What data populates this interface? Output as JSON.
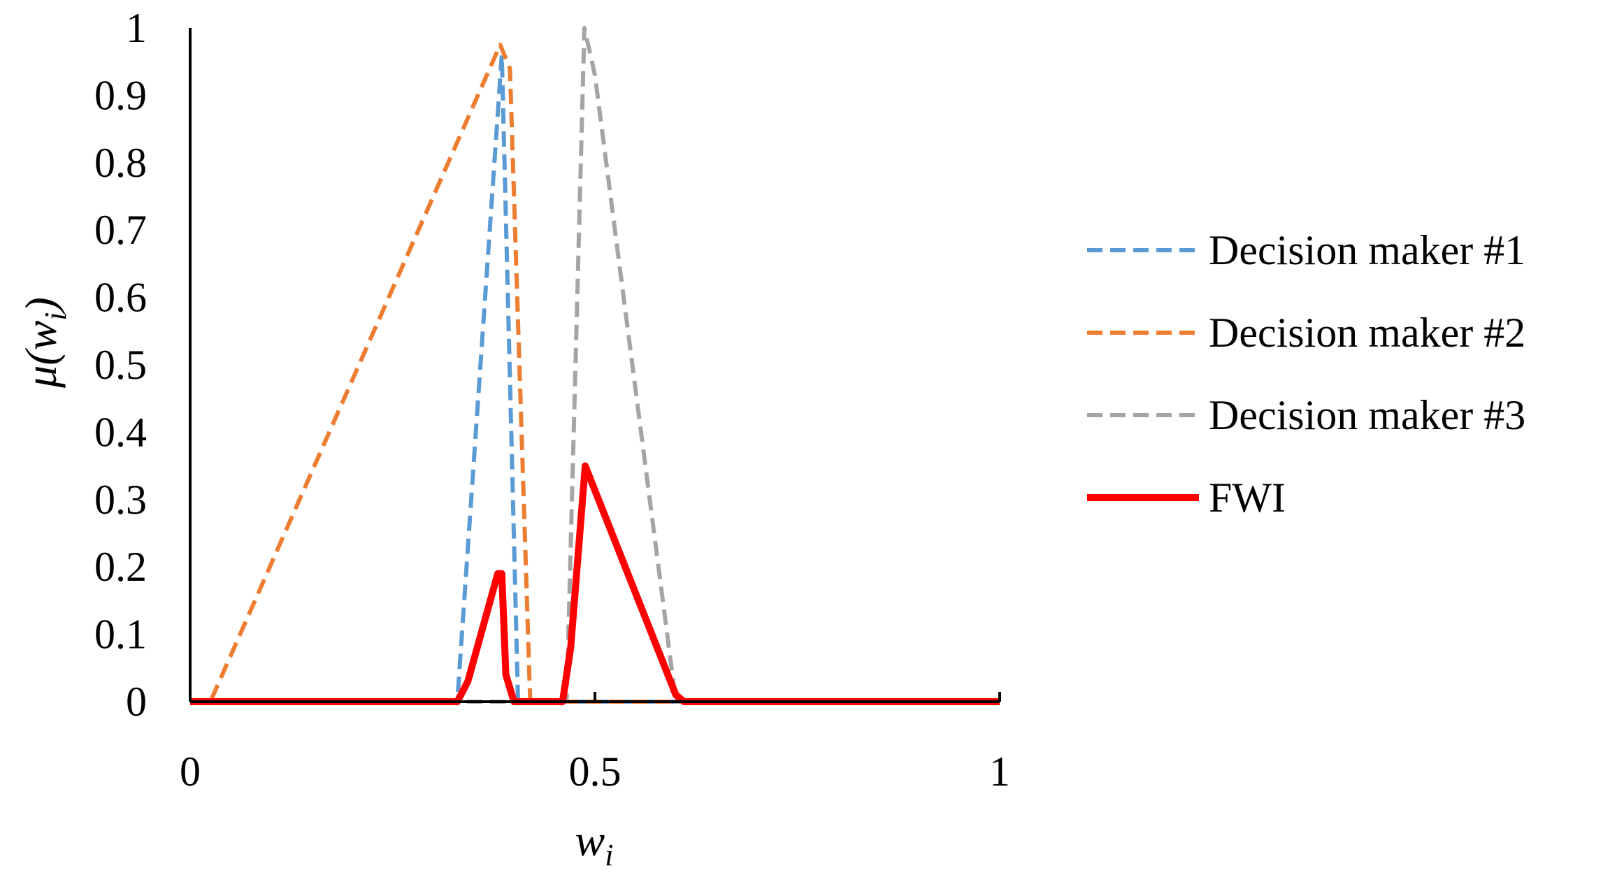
{
  "chart_data": {
    "type": "line",
    "xlabel": {
      "main": "w",
      "sub": "i"
    },
    "ylabel": {
      "main": "μ(w",
      "sub": "i",
      "close": ")"
    },
    "xlim": [
      0,
      1
    ],
    "ylim": [
      0,
      1
    ],
    "x_ticks": [
      0,
      0.5,
      1
    ],
    "y_ticks": [
      0,
      0.1,
      0.2,
      0.3,
      0.4,
      0.5,
      0.6,
      0.7,
      0.8,
      0.9,
      1
    ],
    "grid": false,
    "legend_position": "right",
    "series": [
      {
        "name": "Decision maker #1",
        "color": "#5B9BD5",
        "style": "dashed",
        "points": [
          [
            0,
            0
          ],
          [
            0.33,
            0
          ],
          [
            0.385,
            0.96
          ],
          [
            0.405,
            0
          ],
          [
            1,
            0
          ]
        ]
      },
      {
        "name": "Decision maker #2",
        "color": "#ED7D31",
        "style": "dashed",
        "points": [
          [
            0,
            0
          ],
          [
            0.025,
            0
          ],
          [
            0.383,
            0.975
          ],
          [
            0.395,
            0.94
          ],
          [
            0.42,
            0
          ],
          [
            1,
            0
          ]
        ]
      },
      {
        "name": "Decision maker #3",
        "color": "#A5A5A5",
        "style": "dashed",
        "points": [
          [
            0,
            0
          ],
          [
            0.465,
            0
          ],
          [
            0.487,
            1.0
          ],
          [
            0.5,
            0.93
          ],
          [
            0.6,
            0
          ],
          [
            1,
            0
          ]
        ]
      },
      {
        "name": "FWI",
        "color": "#FF0000",
        "style": "solid",
        "points": [
          [
            0,
            0
          ],
          [
            0.33,
            0
          ],
          [
            0.343,
            0.03
          ],
          [
            0.38,
            0.19
          ],
          [
            0.385,
            0.19
          ],
          [
            0.39,
            0.04
          ],
          [
            0.4,
            0
          ],
          [
            0.46,
            0
          ],
          [
            0.47,
            0.08
          ],
          [
            0.488,
            0.35
          ],
          [
            0.6,
            0.01
          ],
          [
            0.61,
            0
          ],
          [
            1,
            0
          ]
        ]
      }
    ]
  }
}
